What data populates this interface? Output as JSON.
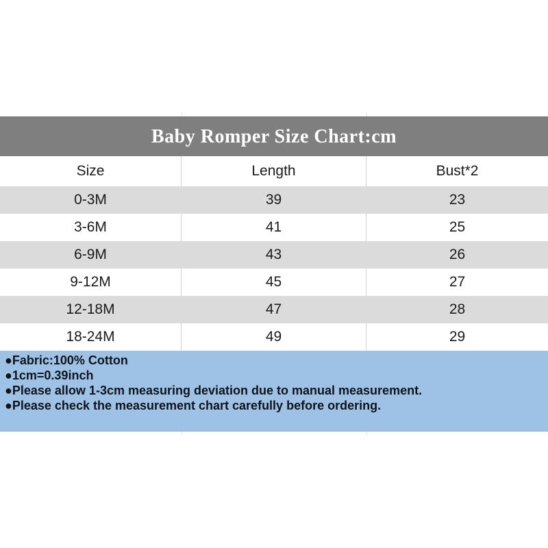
{
  "header": {
    "title": "Baby Romper Size Chart:cm"
  },
  "chart_data": {
    "type": "table",
    "title": "Baby Romper Size Chart:cm",
    "unit": "cm",
    "columns": [
      "Size",
      "Length",
      "Bust*2"
    ],
    "rows": [
      [
        "0-3M",
        39,
        23
      ],
      [
        "3-6M",
        41,
        25
      ],
      [
        "6-9M",
        43,
        26
      ],
      [
        "9-12M",
        45,
        27
      ],
      [
        "12-18M",
        47,
        28
      ],
      [
        "18-24M",
        49,
        29
      ]
    ],
    "notes": [
      "●Fabric:100% Cotton",
      "●1cm=0.39inch",
      "●Please allow 1-3cm measuring deviation due to manual measurement.",
      "●Please check the measurement chart carefully before ordering."
    ]
  },
  "colors": {
    "title_bar_bg": "#7f7f7f",
    "title_text": "#ffffff",
    "row_alt_bg": "#dbdbdb",
    "row_bg": "#ffffff",
    "grid_line": "#d2d2d2",
    "notes_bg": "#9ec2e6",
    "body_text": "#1a1a1a"
  }
}
